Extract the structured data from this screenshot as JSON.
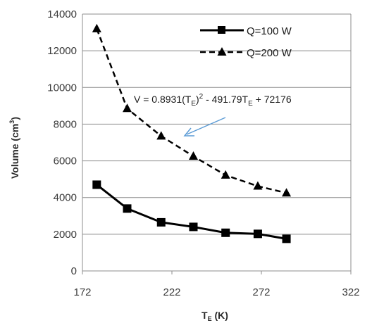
{
  "chart_data": {
    "type": "line",
    "title": "",
    "xlabel": "T",
    "xlabel_sub": "E",
    "xlabel_unit": " (K)",
    "ylabel": "Volume (cm",
    "ylabel_sup": "3",
    "ylabel_end": ")",
    "xlim": [
      172,
      322
    ],
    "ylim": [
      0,
      14000
    ],
    "xticks": [
      172,
      222,
      272,
      322
    ],
    "yticks": [
      0,
      2000,
      4000,
      6000,
      8000,
      10000,
      12000,
      14000
    ],
    "ytick_labels": [
      "0",
      "2000",
      "4000",
      "6000",
      "8000",
      "10000",
      "12000",
      "14000"
    ],
    "grid": "horizontal",
    "legend_position": "top-right",
    "series": [
      {
        "name": "Q=100 W",
        "style": "solid",
        "marker": "square",
        "color": "#000000",
        "x": [
          180,
          197,
          216,
          234,
          252,
          270,
          286
        ],
        "y": [
          4700,
          3400,
          2650,
          2400,
          2080,
          2020,
          1750
        ]
      },
      {
        "name": "Q=200 W",
        "style": "dashed",
        "marker": "triangle",
        "color": "#000000",
        "x": [
          180,
          197,
          216,
          234,
          252,
          270,
          286
        ],
        "y": [
          13200,
          8850,
          7350,
          6250,
          5220,
          4620,
          4250
        ]
      }
    ],
    "annotation": {
      "text_a": "V = 0.8931(T",
      "sub_a": "E",
      "text_b": ")",
      "sup_b": "2",
      "text_c": " - 491.79T",
      "sub_c": "E",
      "text_d": " + 72176",
      "arrow_color": "#5b9bd5"
    }
  }
}
